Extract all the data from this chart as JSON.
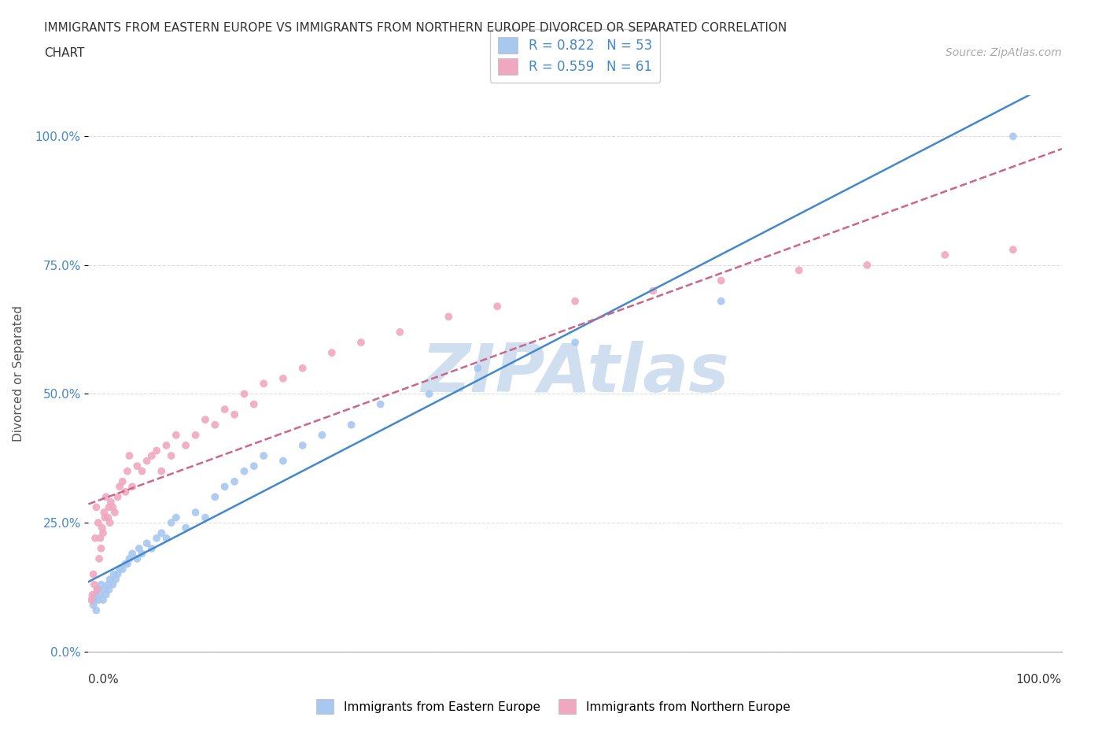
{
  "title_line1": "IMMIGRANTS FROM EASTERN EUROPE VS IMMIGRANTS FROM NORTHERN EUROPE DIVORCED OR SEPARATED CORRELATION",
  "title_line2": "CHART",
  "source": "Source: ZipAtlas.com",
  "ylabel": "Divorced or Separated",
  "x_label_bottom_left": "0.0%",
  "x_label_bottom_right": "100.0%",
  "ytick_values": [
    0.0,
    25.0,
    50.0,
    75.0,
    100.0
  ],
  "xlim": [
    0,
    100
  ],
  "ylim": [
    0,
    108
  ],
  "legend_r1": "R = 0.822",
  "legend_n1": "N = 53",
  "legend_r2": "R = 0.559",
  "legend_n2": "N = 61",
  "color_blue": "#a8c8f0",
  "color_pink": "#f0a8c0",
  "line_color_blue": "#4488cc",
  "line_color_pink": "#cc6688",
  "watermark": "ZIPAtlas",
  "watermark_color": "#d0dff0",
  "background_color": "#ffffff",
  "grid_color": "#dddddd",
  "scatter_blue_x": [
    0.5,
    0.6,
    0.7,
    0.8,
    0.9,
    1.0,
    1.2,
    1.3,
    1.5,
    1.6,
    1.8,
    2.0,
    2.1,
    2.2,
    2.5,
    2.6,
    2.8,
    3.0,
    3.2,
    3.5,
    3.8,
    4.0,
    4.2,
    4.5,
    5.0,
    5.2,
    5.5,
    6.0,
    6.5,
    7.0,
    7.5,
    8.0,
    8.5,
    9.0,
    10.0,
    11.0,
    12.0,
    13.0,
    14.0,
    15.0,
    16.0,
    17.0,
    18.0,
    20.0,
    22.0,
    24.0,
    27.0,
    30.0,
    35.0,
    40.0,
    50.0,
    65.0,
    95.0
  ],
  "scatter_blue_y": [
    9.0,
    10.0,
    11.0,
    8.0,
    12.0,
    10.0,
    11.0,
    13.0,
    10.0,
    12.0,
    11.0,
    13.0,
    12.0,
    14.0,
    13.0,
    15.0,
    14.0,
    15.0,
    16.0,
    16.0,
    17.0,
    17.0,
    18.0,
    19.0,
    18.0,
    20.0,
    19.0,
    21.0,
    20.0,
    22.0,
    23.0,
    22.0,
    25.0,
    26.0,
    24.0,
    27.0,
    26.0,
    30.0,
    32.0,
    33.0,
    35.0,
    36.0,
    38.0,
    37.0,
    40.0,
    42.0,
    44.0,
    48.0,
    50.0,
    55.0,
    60.0,
    68.0,
    100.0
  ],
  "scatter_pink_x": [
    0.3,
    0.4,
    0.5,
    0.6,
    0.7,
    0.8,
    0.9,
    1.0,
    1.1,
    1.2,
    1.3,
    1.4,
    1.5,
    1.6,
    1.7,
    1.8,
    2.0,
    2.1,
    2.2,
    2.3,
    2.5,
    2.7,
    3.0,
    3.2,
    3.5,
    3.8,
    4.0,
    4.2,
    4.5,
    5.0,
    5.5,
    6.0,
    6.5,
    7.0,
    7.5,
    8.0,
    8.5,
    9.0,
    10.0,
    11.0,
    12.0,
    13.0,
    14.0,
    15.0,
    16.0,
    17.0,
    18.0,
    20.0,
    22.0,
    25.0,
    28.0,
    32.0,
    37.0,
    42.0,
    50.0,
    58.0,
    65.0,
    73.0,
    80.0,
    88.0,
    95.0
  ],
  "scatter_pink_y": [
    10.0,
    11.0,
    15.0,
    13.0,
    22.0,
    28.0,
    12.0,
    25.0,
    18.0,
    22.0,
    20.0,
    24.0,
    23.0,
    27.0,
    26.0,
    30.0,
    26.0,
    28.0,
    25.0,
    29.0,
    28.0,
    27.0,
    30.0,
    32.0,
    33.0,
    31.0,
    35.0,
    38.0,
    32.0,
    36.0,
    35.0,
    37.0,
    38.0,
    39.0,
    35.0,
    40.0,
    38.0,
    42.0,
    40.0,
    42.0,
    45.0,
    44.0,
    47.0,
    46.0,
    50.0,
    48.0,
    52.0,
    53.0,
    55.0,
    58.0,
    60.0,
    62.0,
    65.0,
    67.0,
    68.0,
    70.0,
    72.0,
    74.0,
    75.0,
    77.0,
    78.0
  ],
  "legend_bottom_label1": "Immigrants from Eastern Europe",
  "legend_bottom_label2": "Immigrants from Northern Europe"
}
